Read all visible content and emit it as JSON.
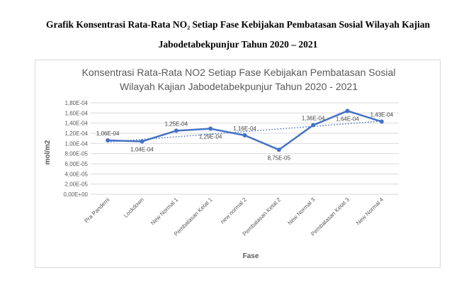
{
  "document": {
    "caption_line1": "Grafik Konsentrasi Rata-Rata NO₂ Setiap Fase Kebijakan Pembatasan Sosial Wilayah Kajian",
    "caption_line2": "Jabodetabekpunjur Tahun 2020 – 2021"
  },
  "chart_data": {
    "type": "line",
    "title_line1": "Konsentrasi Rata-Rata NO2 Setiap Fase Kebijakan Pembatasan Sosial",
    "title_line2": "Wilayah Kajian Jabodetabekpunjur Tahun 2020 - 2021",
    "xlabel": "Fase",
    "ylabel": "mol/m2",
    "ylim": [
      0,
      0.00018
    ],
    "yticks": [
      {
        "value": 0.00018,
        "label": "1,80E-04"
      },
      {
        "value": 0.00016,
        "label": "1,60E-04"
      },
      {
        "value": 0.00014,
        "label": "1,40E-04"
      },
      {
        "value": 0.00012,
        "label": "1,20E-04"
      },
      {
        "value": 0.0001,
        "label": "1,00E-04"
      },
      {
        "value": 8e-05,
        "label": "8,00E-05"
      },
      {
        "value": 6e-05,
        "label": "6,00E-05"
      },
      {
        "value": 4e-05,
        "label": "4,00E-05"
      },
      {
        "value": 2e-05,
        "label": "2,00E-05"
      },
      {
        "value": 0,
        "label": "0,00E+00"
      }
    ],
    "categories": [
      "Pra Pandemi",
      "Lockdown",
      "New Normal 1",
      "Pembatasan Ketat 1",
      "new normal 2",
      "Pembatasan Ketat 2",
      "New Normal 3",
      "Pembatasan Ketat 3",
      "New Normal 4"
    ],
    "values": [
      0.000106,
      0.000104,
      0.000125,
      0.000129,
      0.000116,
      8.75e-05,
      0.000136,
      0.000164,
      0.000143
    ],
    "data_labels": [
      "1,06E-04",
      "1,04E-04",
      "1,25E-04",
      "1,29E-04",
      "1,16E-04",
      "8,75E-05",
      "1,36E-04",
      "1,64E-04",
      "1,43E-04"
    ],
    "label_positions": [
      "above",
      "below",
      "above",
      "below",
      "above",
      "below",
      "above",
      "below",
      "above"
    ],
    "trendline": "linear-dotted",
    "grid": true,
    "legend": "none",
    "colors": {
      "line": "#4472c4",
      "grid": "#d9d9d9",
      "text": "#595959"
    }
  }
}
